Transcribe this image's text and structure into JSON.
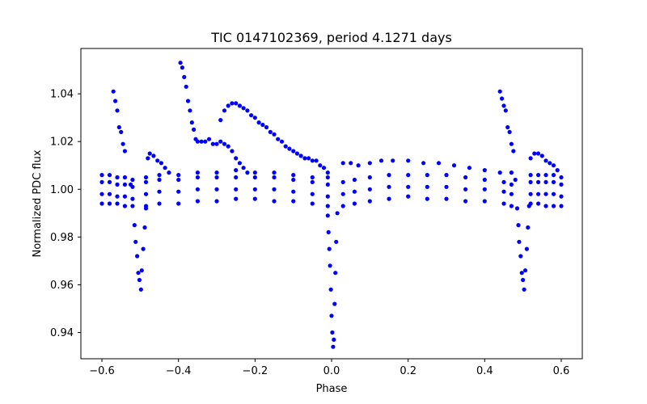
{
  "chart_data": {
    "type": "scatter",
    "title": "TIC 0147102369, period 4.1271 days",
    "xlabel": "Phase",
    "ylabel": "Normalized PDC flux",
    "xlim": [
      -0.655,
      0.655
    ],
    "ylim": [
      0.929,
      1.059
    ],
    "xticks": [
      -0.6,
      -0.4,
      -0.2,
      0.0,
      0.2,
      0.4,
      0.6
    ],
    "xtick_labels": [
      "−0.6",
      "−0.4",
      "−0.2",
      "0.0",
      "0.2",
      "0.4",
      "0.6"
    ],
    "yticks": [
      0.94,
      0.96,
      0.98,
      1.0,
      1.02,
      1.04
    ],
    "ytick_labels": [
      "0.94",
      "0.96",
      "0.98",
      "1.00",
      "1.02",
      "1.04"
    ],
    "grid": false,
    "marker_color": "#0000ff",
    "series": [
      {
        "points": [
          [
            -0.6,
            0.998
          ],
          [
            -0.58,
            0.998
          ],
          [
            -0.56,
            0.997
          ],
          [
            -0.54,
            0.997
          ],
          [
            -0.52,
            0.996
          ],
          [
            -0.6,
            1.003
          ],
          [
            -0.58,
            1.003
          ],
          [
            -0.56,
            1.002
          ],
          [
            -0.54,
            1.002
          ],
          [
            -0.52,
            1.001
          ],
          [
            -0.6,
            1.006
          ],
          [
            -0.58,
            1.006
          ],
          [
            -0.56,
            1.005
          ],
          [
            -0.54,
            1.005
          ],
          [
            -0.52,
            1.004
          ],
          [
            -0.6,
            0.994
          ],
          [
            -0.58,
            0.994
          ],
          [
            -0.56,
            0.994
          ],
          [
            -0.54,
            0.993
          ],
          [
            -0.57,
            1.041
          ],
          [
            -0.565,
            1.037
          ],
          [
            -0.56,
            1.033
          ],
          [
            -0.555,
            1.026
          ],
          [
            -0.55,
            1.024
          ],
          [
            -0.545,
            1.019
          ],
          [
            -0.54,
            1.016
          ],
          [
            -0.525,
            1.002
          ],
          [
            -0.52,
            0.993
          ],
          [
            -0.515,
            0.985
          ],
          [
            -0.512,
            0.978
          ],
          [
            -0.508,
            0.972
          ],
          [
            -0.505,
            0.965
          ],
          [
            -0.502,
            0.962
          ],
          [
            -0.498,
            0.958
          ],
          [
            -0.496,
            0.966
          ],
          [
            -0.492,
            0.975
          ],
          [
            -0.488,
            0.984
          ],
          [
            -0.485,
            0.992
          ],
          [
            -0.485,
            0.998
          ],
          [
            -0.45,
            0.999
          ],
          [
            -0.4,
            0.999
          ],
          [
            -0.35,
            1.0
          ],
          [
            -0.3,
            1.0
          ],
          [
            -0.25,
            1.0
          ],
          [
            -0.2,
            1.0
          ],
          [
            -0.15,
            1.0
          ],
          [
            -0.1,
            0.999
          ],
          [
            -0.05,
            0.998
          ],
          [
            -0.01,
            0.997
          ],
          [
            -0.485,
            1.003
          ],
          [
            -0.45,
            1.004
          ],
          [
            -0.4,
            1.004
          ],
          [
            -0.35,
            1.005
          ],
          [
            -0.3,
            1.005
          ],
          [
            -0.25,
            1.005
          ],
          [
            -0.2,
            1.005
          ],
          [
            -0.15,
            1.005
          ],
          [
            -0.1,
            1.004
          ],
          [
            -0.05,
            1.003
          ],
          [
            -0.01,
            1.002
          ],
          [
            -0.485,
            1.005
          ],
          [
            -0.45,
            1.006
          ],
          [
            -0.4,
            1.006
          ],
          [
            -0.35,
            1.007
          ],
          [
            -0.3,
            1.007
          ],
          [
            -0.25,
            1.008
          ],
          [
            -0.2,
            1.007
          ],
          [
            -0.15,
            1.007
          ],
          [
            -0.1,
            1.006
          ],
          [
            -0.05,
            1.005
          ],
          [
            -0.01,
            1.005
          ],
          [
            -0.485,
            0.993
          ],
          [
            -0.45,
            0.994
          ],
          [
            -0.4,
            0.994
          ],
          [
            -0.35,
            0.995
          ],
          [
            -0.3,
            0.995
          ],
          [
            -0.25,
            0.996
          ],
          [
            -0.2,
            0.996
          ],
          [
            -0.15,
            0.995
          ],
          [
            -0.1,
            0.995
          ],
          [
            -0.05,
            0.994
          ],
          [
            -0.01,
            0.993
          ],
          [
            -0.48,
            1.013
          ],
          [
            -0.475,
            1.015
          ],
          [
            -0.465,
            1.014
          ],
          [
            -0.455,
            1.012
          ],
          [
            -0.445,
            1.011
          ],
          [
            -0.435,
            1.009
          ],
          [
            -0.425,
            1.007
          ],
          [
            -0.395,
            1.053
          ],
          [
            -0.39,
            1.051
          ],
          [
            -0.385,
            1.047
          ],
          [
            -0.38,
            1.043
          ],
          [
            -0.375,
            1.037
          ],
          [
            -0.37,
            1.033
          ],
          [
            -0.365,
            1.028
          ],
          [
            -0.36,
            1.025
          ],
          [
            -0.355,
            1.021
          ],
          [
            -0.35,
            1.02
          ],
          [
            -0.34,
            1.02
          ],
          [
            -0.33,
            1.02
          ],
          [
            -0.32,
            1.021
          ],
          [
            -0.31,
            1.019
          ],
          [
            -0.3,
            1.019
          ],
          [
            -0.29,
            1.02
          ],
          [
            -0.28,
            1.019
          ],
          [
            -0.27,
            1.018
          ],
          [
            -0.26,
            1.016
          ],
          [
            -0.25,
            1.013
          ],
          [
            -0.24,
            1.011
          ],
          [
            -0.23,
            1.009
          ],
          [
            -0.22,
            1.007
          ],
          [
            -0.29,
            1.029
          ],
          [
            -0.28,
            1.033
          ],
          [
            -0.27,
            1.035
          ],
          [
            -0.26,
            1.036
          ],
          [
            -0.25,
            1.036
          ],
          [
            -0.24,
            1.035
          ],
          [
            -0.23,
            1.034
          ],
          [
            -0.22,
            1.033
          ],
          [
            -0.21,
            1.031
          ],
          [
            -0.2,
            1.03
          ],
          [
            -0.19,
            1.028
          ],
          [
            -0.18,
            1.027
          ],
          [
            -0.17,
            1.026
          ],
          [
            -0.16,
            1.024
          ],
          [
            -0.15,
            1.023
          ],
          [
            -0.14,
            1.021
          ],
          [
            -0.13,
            1.02
          ],
          [
            -0.12,
            1.018
          ],
          [
            -0.11,
            1.017
          ],
          [
            -0.1,
            1.016
          ],
          [
            -0.09,
            1.015
          ],
          [
            -0.08,
            1.014
          ],
          [
            -0.07,
            1.013
          ],
          [
            -0.06,
            1.013
          ],
          [
            -0.05,
            1.012
          ],
          [
            -0.04,
            1.012
          ],
          [
            -0.03,
            1.01
          ],
          [
            -0.02,
            1.009
          ],
          [
            -0.01,
            1.007
          ],
          [
            -0.01,
            0.989
          ],
          [
            -0.008,
            0.982
          ],
          [
            -0.006,
            0.975
          ],
          [
            -0.004,
            0.968
          ],
          [
            -0.002,
            0.958
          ],
          [
            0.0,
            0.947
          ],
          [
            0.002,
            0.94
          ],
          [
            0.004,
            0.934
          ],
          [
            0.006,
            0.937
          ],
          [
            0.008,
            0.952
          ],
          [
            0.01,
            0.965
          ],
          [
            0.012,
            0.978
          ],
          [
            0.015,
            0.99
          ],
          [
            0.03,
            1.011
          ],
          [
            0.05,
            1.011
          ],
          [
            0.07,
            1.01
          ],
          [
            0.1,
            1.011
          ],
          [
            0.13,
            1.012
          ],
          [
            0.16,
            1.012
          ],
          [
            0.2,
            1.012
          ],
          [
            0.24,
            1.011
          ],
          [
            0.28,
            1.011
          ],
          [
            0.32,
            1.01
          ],
          [
            0.36,
            1.009
          ],
          [
            0.4,
            1.008
          ],
          [
            0.44,
            1.007
          ],
          [
            0.47,
            1.007
          ],
          [
            0.03,
            0.998
          ],
          [
            0.06,
            0.999
          ],
          [
            0.1,
            1.0
          ],
          [
            0.15,
            1.001
          ],
          [
            0.2,
            1.001
          ],
          [
            0.25,
            1.001
          ],
          [
            0.3,
            1.001
          ],
          [
            0.35,
            1.0
          ],
          [
            0.4,
            1.0
          ],
          [
            0.45,
            0.999
          ],
          [
            0.47,
            0.998
          ],
          [
            0.03,
            1.003
          ],
          [
            0.06,
            1.004
          ],
          [
            0.1,
            1.005
          ],
          [
            0.15,
            1.006
          ],
          [
            0.2,
            1.006
          ],
          [
            0.25,
            1.006
          ],
          [
            0.3,
            1.006
          ],
          [
            0.35,
            1.005
          ],
          [
            0.4,
            1.004
          ],
          [
            0.45,
            1.003
          ],
          [
            0.47,
            1.002
          ],
          [
            0.03,
            0.993
          ],
          [
            0.06,
            0.994
          ],
          [
            0.1,
            0.995
          ],
          [
            0.15,
            0.996
          ],
          [
            0.2,
            0.997
          ],
          [
            0.25,
            0.996
          ],
          [
            0.3,
            0.996
          ],
          [
            0.35,
            0.995
          ],
          [
            0.4,
            0.995
          ],
          [
            0.45,
            0.994
          ],
          [
            0.47,
            0.993
          ],
          [
            0.44,
            1.041
          ],
          [
            0.445,
            1.038
          ],
          [
            0.45,
            1.035
          ],
          [
            0.455,
            1.033
          ],
          [
            0.46,
            1.026
          ],
          [
            0.465,
            1.024
          ],
          [
            0.47,
            1.019
          ],
          [
            0.475,
            1.016
          ],
          [
            0.48,
            1.004
          ],
          [
            0.485,
            0.992
          ],
          [
            0.488,
            0.985
          ],
          [
            0.49,
            0.978
          ],
          [
            0.494,
            0.972
          ],
          [
            0.497,
            0.965
          ],
          [
            0.5,
            0.962
          ],
          [
            0.503,
            0.958
          ],
          [
            0.506,
            0.966
          ],
          [
            0.51,
            0.975
          ],
          [
            0.513,
            0.984
          ],
          [
            0.516,
            0.993
          ],
          [
            0.52,
            1.013
          ],
          [
            0.53,
            1.015
          ],
          [
            0.54,
            1.015
          ],
          [
            0.55,
            1.014
          ],
          [
            0.56,
            1.012
          ],
          [
            0.57,
            1.011
          ],
          [
            0.58,
            1.01
          ],
          [
            0.59,
            1.008
          ],
          [
            0.52,
            0.998
          ],
          [
            0.54,
            0.998
          ],
          [
            0.56,
            0.998
          ],
          [
            0.58,
            0.998
          ],
          [
            0.6,
            0.997
          ],
          [
            0.52,
            1.003
          ],
          [
            0.54,
            1.003
          ],
          [
            0.56,
            1.003
          ],
          [
            0.58,
            1.003
          ],
          [
            0.6,
            1.002
          ],
          [
            0.52,
            1.006
          ],
          [
            0.54,
            1.006
          ],
          [
            0.56,
            1.006
          ],
          [
            0.58,
            1.006
          ],
          [
            0.6,
            1.005
          ],
          [
            0.52,
            0.994
          ],
          [
            0.54,
            0.994
          ],
          [
            0.56,
            0.993
          ],
          [
            0.58,
            0.993
          ],
          [
            0.6,
            0.993
          ]
        ]
      }
    ]
  }
}
